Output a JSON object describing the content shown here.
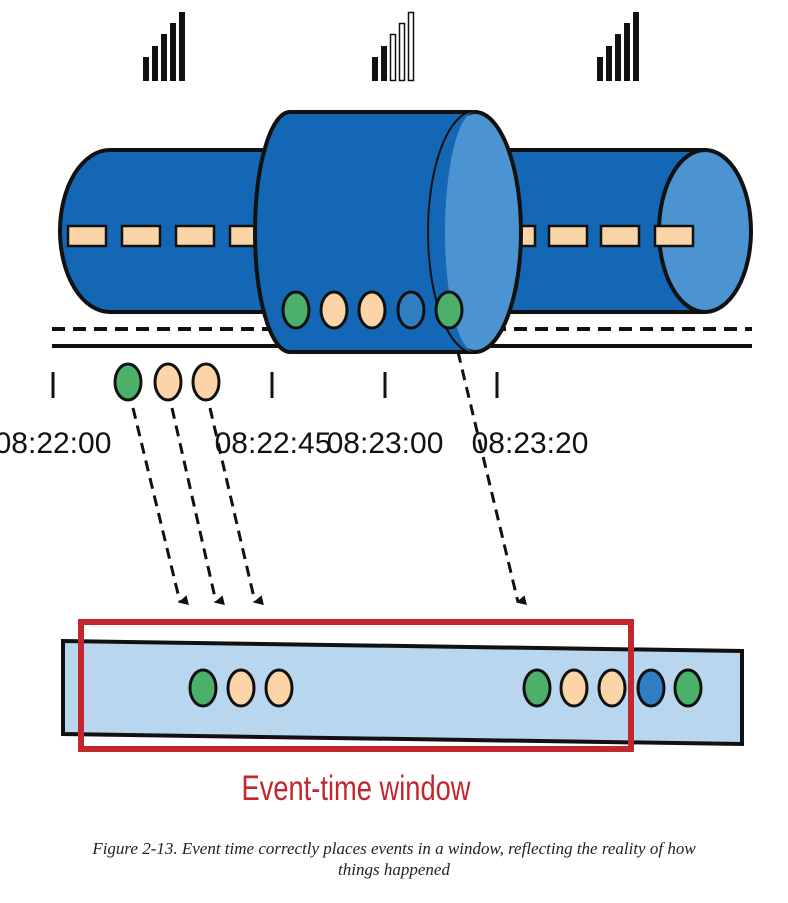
{
  "colors": {
    "pipe_blue": "#1467b4",
    "pipe_light": "#4b93d1",
    "window_fill": "#b8d6ee",
    "window_red": "#c1272d",
    "event_green": "#4caf6a",
    "event_peach": "#fbd5a7",
    "event_blue": "#2f7fc2",
    "outline": "#111111"
  },
  "icons": {
    "signals": [
      "signal-strong-icon",
      "signal-weak-icon",
      "signal-strong-icon"
    ]
  },
  "timeline": {
    "ticks": [
      "08:22:00",
      "08:22:45",
      "08:23:00",
      "08:23:20"
    ]
  },
  "events": {
    "in_pipe": [
      "green",
      "peach",
      "peach",
      "blue",
      "green"
    ],
    "delayed_below_track": [
      "green",
      "peach",
      "peach"
    ],
    "window_group_left": [
      "green",
      "peach",
      "peach"
    ],
    "window_group_right": [
      "green",
      "peach",
      "peach"
    ],
    "outside_window": [
      "blue",
      "green"
    ]
  },
  "window_label": "Event-time window",
  "caption": {
    "line1": "Figure 2-13. Event time correctly places events in a window, reflecting the reality of how",
    "line2": "things happened"
  }
}
